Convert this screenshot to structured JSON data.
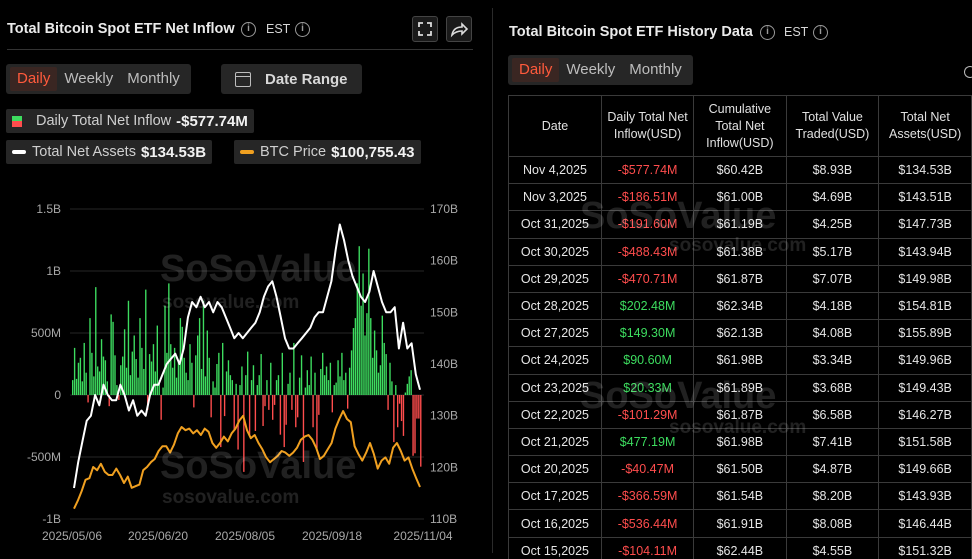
{
  "left": {
    "title": "Total Bitcoin Spot ETF Net Inflow",
    "timezone": "EST",
    "tabs": [
      {
        "label": "Daily",
        "active": true
      },
      {
        "label": "Weekly",
        "active": false
      },
      {
        "label": "Monthly",
        "active": false
      }
    ],
    "date_range_label": "Date Range",
    "legend": {
      "net_inflow_label": "Daily Total Net Inflow",
      "net_inflow_value": "-$577.74M",
      "net_assets_label": "Total Net Assets",
      "net_assets_value": "$134.53B",
      "btc_label": "BTC Price",
      "btc_value": "$100,755.43"
    },
    "watermark": {
      "brand": "SoSoValue",
      "domain": "sosovalue.com"
    }
  },
  "right": {
    "title": "Total Bitcoin Spot ETF History Data",
    "timezone": "EST",
    "tabs": [
      {
        "label": "Daily",
        "active": true
      },
      {
        "label": "Weekly",
        "active": false
      },
      {
        "label": "Monthly",
        "active": false
      }
    ],
    "columns": [
      "Date",
      "Daily Total Net Inflow(USD)",
      "Cumulative Total Net Inflow(USD)",
      "Total Value Traded(USD)",
      "Total Net Assets(USD)"
    ],
    "rows": [
      [
        "Nov 4,2025",
        "-$577.74M",
        "$60.42B",
        "$8.93B",
        "$134.53B"
      ],
      [
        "Nov 3,2025",
        "-$186.51M",
        "$61.00B",
        "$4.69B",
        "$143.51B"
      ],
      [
        "Oct 31,2025",
        "-$191.60M",
        "$61.19B",
        "$4.25B",
        "$147.73B"
      ],
      [
        "Oct 30,2025",
        "-$488.43M",
        "$61.38B",
        "$5.17B",
        "$143.94B"
      ],
      [
        "Oct 29,2025",
        "-$470.71M",
        "$61.87B",
        "$7.07B",
        "$149.98B"
      ],
      [
        "Oct 28,2025",
        "$202.48M",
        "$62.34B",
        "$4.18B",
        "$154.81B"
      ],
      [
        "Oct 27,2025",
        "$149.30M",
        "$62.13B",
        "$4.08B",
        "$155.89B"
      ],
      [
        "Oct 24,2025",
        "$90.60M",
        "$61.98B",
        "$3.34B",
        "$149.96B"
      ],
      [
        "Oct 23,2025",
        "$20.33M",
        "$61.89B",
        "$3.68B",
        "$149.43B"
      ],
      [
        "Oct 22,2025",
        "-$101.29M",
        "$61.87B",
        "$6.58B",
        "$146.27B"
      ],
      [
        "Oct 21,2025",
        "$477.19M",
        "$61.98B",
        "$7.41B",
        "$151.58B"
      ],
      [
        "Oct 20,2025",
        "-$40.47M",
        "$61.50B",
        "$4.87B",
        "$149.66B"
      ],
      [
        "Oct 17,2025",
        "-$366.59M",
        "$61.54B",
        "$8.20B",
        "$143.93B"
      ],
      [
        "Oct 16,2025",
        "-$536.44M",
        "$61.91B",
        "$8.08B",
        "$146.44B"
      ],
      [
        "Oct 15,2025",
        "-$104.11M",
        "$62.44B",
        "$4.55B",
        "$151.32B"
      ]
    ],
    "watermark": {
      "brand": "SoSoValue",
      "domain": "sosovalue.com"
    }
  },
  "colors": {
    "positive": "#3ddc5f",
    "negative": "#ff4d4d",
    "assets_line": "#ffffff",
    "btc_line": "#f0a020",
    "accent": "#ff5a3c"
  },
  "chart_data": {
    "type": "bar",
    "title": "Total Bitcoin Spot ETF Net Inflow",
    "x_tick_labels": [
      "2025/05/06",
      "2025/06/20",
      "2025/08/05",
      "2025/09/18",
      "2025/11/04"
    ],
    "y_left_ticks": [
      "1.5B",
      "1B",
      "500M",
      "0",
      "-500M",
      "-1B"
    ],
    "y_left_range": [
      -1000000000,
      1500000000
    ],
    "y_right_ticks": [
      "170B",
      "160B",
      "150B",
      "140B",
      "130B",
      "120B",
      "110B"
    ],
    "y_right_range": [
      110000000000,
      170000000000
    ],
    "grid": true,
    "series": [
      {
        "name": "Daily Total Net Inflow",
        "type": "bar",
        "unit": "M USD",
        "values": [
          120,
          380,
          130,
          260,
          300,
          110,
          420,
          180,
          -60,
          620,
          340,
          150,
          870,
          230,
          190,
          450,
          310,
          280,
          110,
          -90,
          650,
          590,
          320,
          80,
          -40,
          240,
          310,
          530,
          220,
          760,
          160,
          350,
          480,
          290,
          140,
          620,
          380,
          210,
          850,
          -120,
          330,
          270,
          410,
          190,
          560,
          120,
          -200,
          60,
          720,
          340,
          900,
          410,
          220,
          380,
          140,
          280,
          620,
          550,
          300,
          180,
          120,
          410,
          260,
          -100,
          320,
          480,
          620,
          210,
          760,
          150,
          520,
          300,
          -180,
          110,
          60,
          250,
          340,
          -420,
          420,
          -170,
          190,
          280,
          160,
          120,
          -280,
          90,
          -440,
          80,
          230,
          -620,
          160,
          350,
          -320,
          120,
          240,
          -290,
          80,
          160,
          330,
          -250,
          -90,
          120,
          -120,
          260,
          -200,
          -80,
          120,
          160,
          -320,
          340,
          -420,
          -240,
          90,
          180,
          -120,
          420,
          -260,
          -180,
          140,
          320,
          -540,
          60,
          200,
          80,
          310,
          -260,
          180,
          -440,
          -160,
          210,
          340,
          160,
          230,
          120,
          260,
          -140,
          80,
          100,
          280,
          150,
          340,
          120,
          180,
          -110,
          220,
          360,
          540,
          620,
          900,
          1200,
          720,
          980,
          480,
          660,
          1180,
          620,
          300,
          520,
          360,
          180,
          240,
          640,
          420,
          330,
          -120,
          260,
          110,
          -380,
          80,
          -260,
          -70,
          -210,
          -330,
          20,
          90,
          150,
          200,
          -490,
          -470,
          -190,
          -190,
          -578
        ]
      },
      {
        "name": "Total Net Assets",
        "type": "line",
        "unit": "B USD",
        "values": [
          116,
          121,
          125,
          129,
          130,
          134,
          132,
          136,
          134,
          133,
          133,
          136,
          134,
          131,
          133,
          130,
          131,
          130,
          134,
          136,
          136,
          138,
          140,
          141,
          142,
          140,
          143,
          149,
          152,
          151,
          153,
          151,
          152,
          150,
          152,
          151,
          149,
          147,
          145,
          146,
          145,
          146,
          147,
          148,
          150,
          153,
          155,
          156,
          153,
          149,
          145,
          143,
          143,
          144,
          145,
          146,
          147,
          149,
          150,
          150,
          153,
          156,
          162,
          167,
          164,
          160,
          157,
          155,
          153,
          152,
          154,
          158,
          155,
          152,
          150,
          150,
          151,
          143,
          148,
          143,
          144,
          138,
          135
        ]
      },
      {
        "name": "BTC Price",
        "type": "line",
        "unit": "USD",
        "values": [
          94000,
          96500,
          99500,
          103000,
          103500,
          107000,
          106000,
          108000,
          105500,
          104500,
          104500,
          106500,
          104500,
          102000,
          104000,
          100500,
          101000,
          101500,
          106000,
          107000,
          108500,
          109500,
          112000,
          113500,
          113500,
          111500,
          114000,
          117500,
          119500,
          118500,
          119000,
          117500,
          118500,
          117000,
          119000,
          118000,
          114500,
          113000,
          114500,
          116500,
          115000,
          117500,
          119000,
          121500,
          123000,
          118500,
          116000,
          117000,
          114500,
          112500,
          110000,
          108500,
          109500,
          110500,
          112000,
          111500,
          110500,
          111500,
          113000,
          115500,
          116500,
          117000,
          115500,
          113000,
          109500,
          110500,
          112500,
          114500,
          119000,
          122000,
          124500,
          122000,
          121000,
          113500,
          111000,
          109000,
          111500,
          114500,
          111000,
          106500,
          109000,
          110000,
          108000,
          113000,
          114500,
          112000,
          109000,
          110000,
          106500,
          103500,
          100755
        ]
      }
    ]
  }
}
